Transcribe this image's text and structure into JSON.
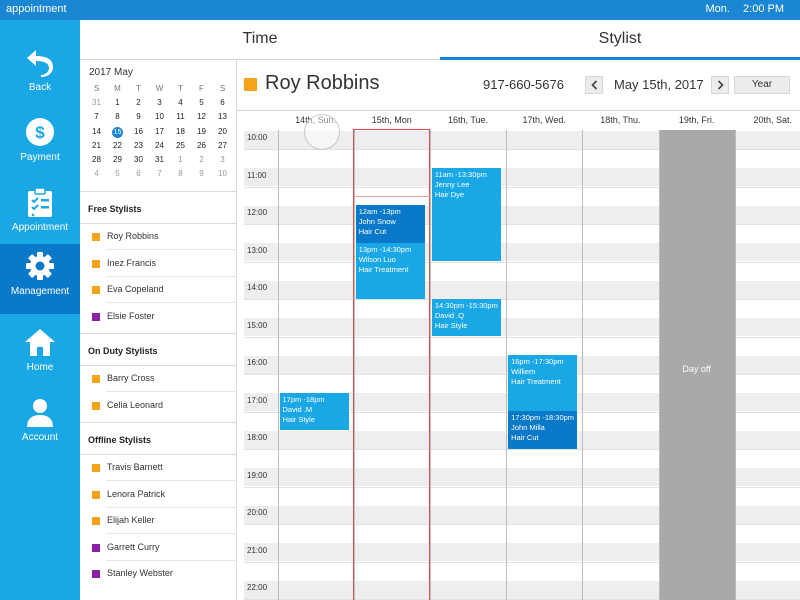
{
  "statusbar": {
    "app_title": "appointment",
    "day": "Mon.",
    "time": "2:00 PM"
  },
  "nav": {
    "items": [
      {
        "label": "Back",
        "icon": "back-arrow-icon",
        "active": false
      },
      {
        "label": "Payment",
        "icon": "dollar-icon",
        "active": false
      },
      {
        "label": "Appointment",
        "icon": "clipboard-icon",
        "active": false
      },
      {
        "label": "Management",
        "icon": "gear-icon",
        "active": true
      },
      {
        "label": "Home",
        "icon": "home-icon",
        "active": false
      },
      {
        "label": "Account",
        "icon": "user-icon",
        "active": false
      }
    ]
  },
  "tabs": [
    {
      "label": "Time",
      "active": false
    },
    {
      "label": "Stylist",
      "active": true
    }
  ],
  "mini_calendar": {
    "title": "2017 May",
    "weekdays": [
      "S",
      "M",
      "T",
      "W",
      "T",
      "F",
      "S"
    ],
    "today": "15",
    "weeks": [
      [
        {
          "d": "31",
          "m": 1
        },
        {
          "d": "1",
          "m": 0
        },
        {
          "d": "2",
          "m": 0
        },
        {
          "d": "3",
          "m": 0
        },
        {
          "d": "4",
          "m": 0
        },
        {
          "d": "5",
          "m": 0
        },
        {
          "d": "6",
          "m": 0
        }
      ],
      [
        {
          "d": "7",
          "m": 0
        },
        {
          "d": "8",
          "m": 0
        },
        {
          "d": "9",
          "m": 0
        },
        {
          "d": "10",
          "m": 0
        },
        {
          "d": "11",
          "m": 0
        },
        {
          "d": "12",
          "m": 0
        },
        {
          "d": "13",
          "m": 0
        }
      ],
      [
        {
          "d": "14",
          "m": 0
        },
        {
          "d": "15",
          "m": 0
        },
        {
          "d": "16",
          "m": 0
        },
        {
          "d": "17",
          "m": 0
        },
        {
          "d": "18",
          "m": 0
        },
        {
          "d": "19",
          "m": 0
        },
        {
          "d": "20",
          "m": 0
        }
      ],
      [
        {
          "d": "21",
          "m": 0
        },
        {
          "d": "22",
          "m": 0
        },
        {
          "d": "23",
          "m": 0
        },
        {
          "d": "24",
          "m": 0
        },
        {
          "d": "25",
          "m": 0
        },
        {
          "d": "26",
          "m": 0
        },
        {
          "d": "27",
          "m": 0
        }
      ],
      [
        {
          "d": "28",
          "m": 0
        },
        {
          "d": "29",
          "m": 0
        },
        {
          "d": "30",
          "m": 0
        },
        {
          "d": "31",
          "m": 0
        },
        {
          "d": "1",
          "m": 1
        },
        {
          "d": "2",
          "m": 1
        },
        {
          "d": "3",
          "m": 1
        }
      ],
      [
        {
          "d": "4",
          "m": 1
        },
        {
          "d": "5",
          "m": 1
        },
        {
          "d": "6",
          "m": 1
        },
        {
          "d": "7",
          "m": 1
        },
        {
          "d": "8",
          "m": 1
        },
        {
          "d": "9",
          "m": 1
        },
        {
          "d": "10",
          "m": 1
        }
      ]
    ]
  },
  "stylist_groups": [
    {
      "title": "Free Stylists",
      "stylists": [
        {
          "name": "Roy Robbins",
          "color": "#f5a31a"
        },
        {
          "name": "Inez Francis",
          "color": "#f5a31a"
        },
        {
          "name": "Eva Copeland",
          "color": "#f5a31a"
        },
        {
          "name": "Elsie Foster",
          "color": "#8b1fa6"
        }
      ]
    },
    {
      "title": "On Duty Stylists",
      "stylists": [
        {
          "name": "Barry Cross",
          "color": "#f5a31a"
        },
        {
          "name": "Celia Leonard",
          "color": "#f5a31a"
        }
      ]
    },
    {
      "title": "Offline Stylists",
      "stylists": [
        {
          "name": "Travis Barnett",
          "color": "#f5a31a"
        },
        {
          "name": "Lenora Patrick",
          "color": "#f5a31a"
        },
        {
          "name": "Elijah Keller",
          "color": "#f5a31a"
        },
        {
          "name": "Garrett Curry",
          "color": "#8b1fa6"
        },
        {
          "name": "Stanley Webster",
          "color": "#8b1fa6"
        }
      ]
    }
  ],
  "header": {
    "stylist_name": "Roy Robbins",
    "stylist_color": "#f5a31a",
    "phone": "917-660-5676",
    "date": "May 15th, 2017",
    "year_button": "Year",
    "prev_icon": "chevron-left-icon",
    "next_icon": "chevron-right-icon"
  },
  "schedule": {
    "days": [
      "14th, Sun.",
      "15th, Mon",
      "16th, Tue.",
      "17th, Wed.",
      "18th, Thu.",
      "19th, Fri.",
      "20th, Sat."
    ],
    "selected_day": 1,
    "hours": [
      "10:00",
      "11:00",
      "12:00",
      "13:00",
      "14:00",
      "15:00",
      "16:00",
      "17:00",
      "18:00",
      "19:00",
      "20:00",
      "21:00",
      "22:00"
    ],
    "first_hour": 10,
    "day_off": {
      "day": 5,
      "label": "Day off"
    },
    "appointments": [
      {
        "day": 0,
        "start": 17,
        "end": 18,
        "time": "17pm -18pm",
        "client": "David .M",
        "service": "Hair Style",
        "color": "#1aa7e6"
      },
      {
        "day": 1,
        "start": 12,
        "end": 13,
        "time": "12am -13pm",
        "client": "John Snow",
        "service": "Hair Cut",
        "color": "#0b79c9"
      },
      {
        "day": 1,
        "start": 13,
        "end": 14.5,
        "time": "13pm -14:30pm",
        "client": "Wilson Luo",
        "service": "Hair Treatment",
        "color": "#1aa7e6"
      },
      {
        "day": 2,
        "start": 11,
        "end": 13.5,
        "time": "11am -13:30pm",
        "client": "Jenny Lee",
        "service": "Hair Dye",
        "color": "#1aa7e6"
      },
      {
        "day": 2,
        "start": 14.5,
        "end": 15.5,
        "time": "14:30pm -15:30pm",
        "client": "David .Q",
        "service": "Hair Style",
        "color": "#1aa7e6"
      },
      {
        "day": 3,
        "start": 16,
        "end": 17.5,
        "time": "16pm -17:30pm",
        "client": "Williem",
        "service": "Hair Treatment",
        "color": "#1aa7e6"
      },
      {
        "day": 3,
        "start": 17.5,
        "end": 18.5,
        "time": "17:30pm -18:30pm",
        "client": "John Milla",
        "service": "Hair Cut",
        "color": "#0b79c9"
      }
    ]
  }
}
